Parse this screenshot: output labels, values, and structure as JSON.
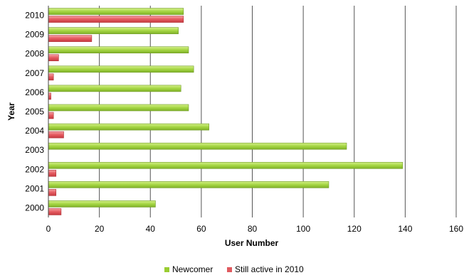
{
  "chart_data": {
    "type": "bar",
    "orientation": "horizontal",
    "title": "",
    "xlabel": "User Number",
    "ylabel": "Year",
    "xlim": [
      0,
      160
    ],
    "x_ticks": [
      0,
      20,
      40,
      60,
      80,
      100,
      120,
      140,
      160
    ],
    "grid": "vertical major gridlines",
    "legend_position": "bottom",
    "categories": [
      "2000",
      "2001",
      "2002",
      "2003",
      "2004",
      "2005",
      "2006",
      "2007",
      "2008",
      "2009",
      "2010"
    ],
    "series": [
      {
        "name": "Newcomer",
        "color": "#9acd32",
        "values": [
          42,
          110,
          139,
          117,
          63,
          55,
          52,
          57,
          55,
          51,
          53
        ]
      },
      {
        "name": "Still active in 2010",
        "color": "#e05a5f",
        "values": [
          5,
          3,
          3,
          0,
          6,
          2,
          1,
          2,
          4,
          17,
          53
        ]
      }
    ]
  }
}
